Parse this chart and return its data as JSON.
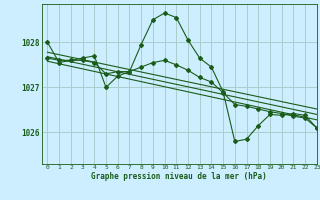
{
  "title": "Graphe pression niveau de la mer (hPa)",
  "bg_color": "#cceeff",
  "grid_color": "#aacccc",
  "line_color": "#1a5c1a",
  "xlim": [
    -0.5,
    23
  ],
  "ylim": [
    1025.3,
    1028.85
  ],
  "yticks": [
    1026,
    1027,
    1028
  ],
  "xticks": [
    0,
    1,
    2,
    3,
    4,
    5,
    6,
    7,
    8,
    9,
    10,
    11,
    12,
    13,
    14,
    15,
    16,
    17,
    18,
    19,
    20,
    21,
    22,
    23
  ],
  "series1": [
    1028.0,
    1027.55,
    1027.6,
    1027.65,
    1027.7,
    1027.0,
    1027.25,
    1027.35,
    1027.95,
    1028.5,
    1028.65,
    1028.55,
    1028.05,
    1027.65,
    1027.45,
    1026.9,
    1025.8,
    1025.85,
    1026.15,
    1026.4,
    1026.38,
    1026.42,
    1026.38,
    1026.1
  ],
  "series2": [
    1027.65,
    1027.6,
    1027.6,
    1027.6,
    1027.55,
    1027.3,
    1027.35,
    1027.35,
    1027.45,
    1027.55,
    1027.6,
    1027.5,
    1027.38,
    1027.22,
    1027.12,
    1026.88,
    1026.62,
    1026.58,
    1026.52,
    1026.46,
    1026.42,
    1026.36,
    1026.32,
    1026.1
  ],
  "trend1": [
    1027.78,
    1026.52
  ],
  "trend2": [
    1027.68,
    1026.4
  ],
  "trend3": [
    1027.58,
    1026.28
  ]
}
